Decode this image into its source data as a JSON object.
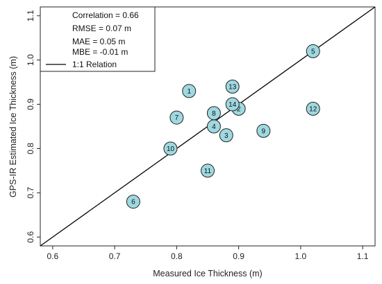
{
  "chart_data": {
    "type": "scatter",
    "xlabel": "Measured Ice Thickness (m)",
    "ylabel": "GPS-IR Estimated Ice Thickness (m)",
    "xlim": [
      0.58,
      1.12
    ],
    "ylim": [
      0.58,
      1.12
    ],
    "x_ticks": [
      "0.6",
      "0.7",
      "0.8",
      "0.9",
      "1.0",
      "1.1"
    ],
    "y_ticks": [
      "0.6",
      "0.7",
      "0.8",
      "0.9",
      "1.0",
      "1.1"
    ],
    "grid": false,
    "legend_position": "top-left",
    "stats": [
      "Correlation = 0.66",
      "RMSE = 0.07 m",
      "MAE = 0.05 m",
      "MBE = -0.01 m"
    ],
    "reference_line_label": "1:1 Relation",
    "marker_color": "#9fd8e0",
    "marker_edge_color": "#222222",
    "points": [
      {
        "label": "1",
        "x": 0.82,
        "y": 0.93
      },
      {
        "label": "2",
        "x": 0.9,
        "y": 0.89
      },
      {
        "label": "3",
        "x": 0.88,
        "y": 0.83
      },
      {
        "label": "4",
        "x": 0.86,
        "y": 0.85
      },
      {
        "label": "5",
        "x": 1.02,
        "y": 1.02
      },
      {
        "label": "6",
        "x": 0.73,
        "y": 0.68
      },
      {
        "label": "7",
        "x": 0.8,
        "y": 0.87
      },
      {
        "label": "8",
        "x": 0.86,
        "y": 0.88
      },
      {
        "label": "9",
        "x": 0.94,
        "y": 0.84
      },
      {
        "label": "10",
        "x": 0.79,
        "y": 0.8
      },
      {
        "label": "11",
        "x": 0.85,
        "y": 0.75
      },
      {
        "label": "12",
        "x": 1.02,
        "y": 0.89
      },
      {
        "label": "13",
        "x": 0.89,
        "y": 0.94
      },
      {
        "label": "14",
        "x": 0.89,
        "y": 0.9
      }
    ]
  }
}
